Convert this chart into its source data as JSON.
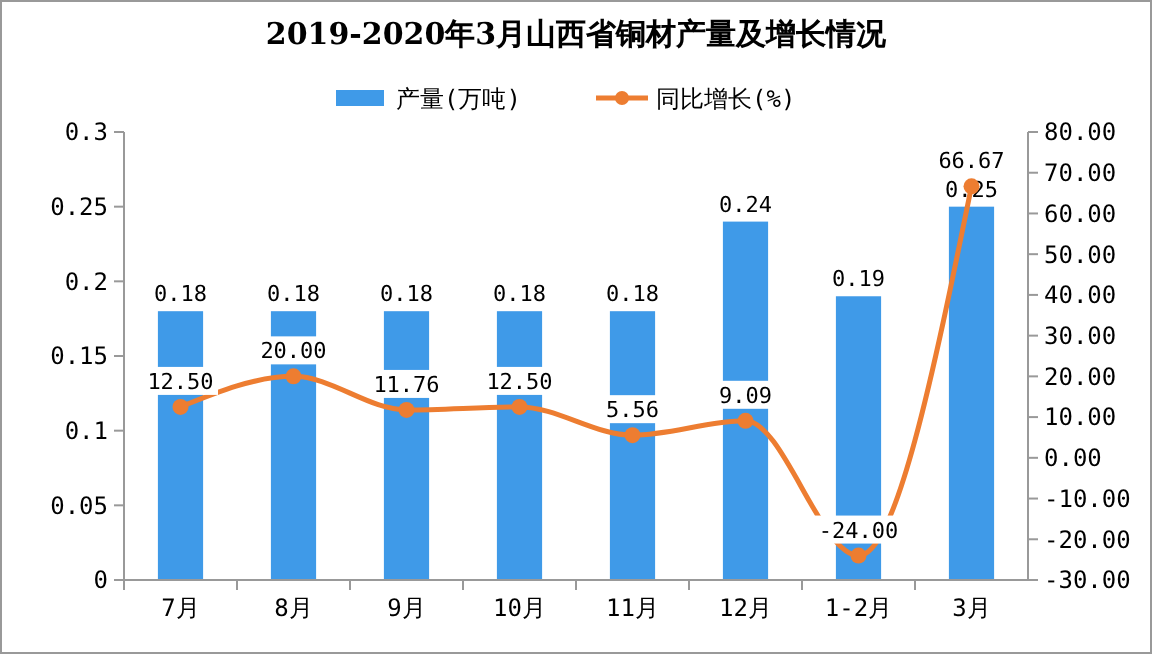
{
  "chart_data": {
    "type": "bar",
    "title": "2019-2020年3月山西省铜材产量及增长情况",
    "categories": [
      "7月",
      "8月",
      "9月",
      "10月",
      "11月",
      "12月",
      "1-2月",
      "3月"
    ],
    "series": [
      {
        "name": "产量(万吨)",
        "color": "#3f9ae8",
        "values": [
          0.18,
          0.18,
          0.18,
          0.18,
          0.18,
          0.24,
          0.19,
          0.25
        ],
        "value_labels": [
          "0.18",
          "0.18",
          "0.18",
          "0.18",
          "0.18",
          "0.24",
          "0.19",
          "0.25"
        ]
      },
      {
        "name": "同比增长(%)",
        "type": "line",
        "axis": "y2",
        "color": "#ed7d31",
        "marker": "circle",
        "values": [
          12.5,
          20.0,
          11.76,
          12.5,
          5.56,
          9.09,
          -24.0,
          66.67
        ],
        "value_labels": [
          "12.50",
          "20.00",
          "11.76",
          "12.50",
          "5.56",
          "9.09",
          "-24.00",
          "66.67"
        ]
      }
    ],
    "ylim": [
      0,
      0.3
    ],
    "yticks": [
      0,
      0.05,
      0.1,
      0.15,
      0.2,
      0.25,
      0.3
    ],
    "y2lim": [
      -30,
      80
    ],
    "y2ticks": [
      {
        "value": -30,
        "label": "-30.00"
      },
      {
        "value": -20,
        "label": "-20.00"
      },
      {
        "value": -10,
        "label": "-10.00"
      },
      {
        "value": 0,
        "label": "0.00"
      },
      {
        "value": 10,
        "label": "10.00"
      },
      {
        "value": 20,
        "label": "20.00"
      },
      {
        "value": 30,
        "label": "30.00"
      },
      {
        "value": 40,
        "label": "40.00"
      },
      {
        "value": 50,
        "label": "50.00"
      },
      {
        "value": 60,
        "label": "60.00"
      },
      {
        "value": 70,
        "label": "70.00"
      },
      {
        "value": 80,
        "label": "80.00"
      }
    ],
    "legend": "top",
    "grid": false
  }
}
